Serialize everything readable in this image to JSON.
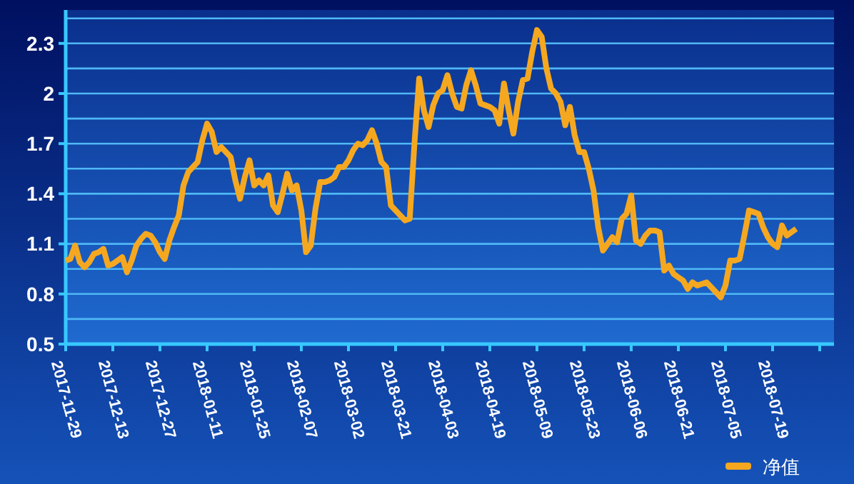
{
  "chart_data": {
    "type": "line",
    "categories": [
      "2017-11-29",
      null,
      null,
      null,
      null,
      null,
      null,
      null,
      null,
      null,
      "2017-12-13",
      null,
      null,
      null,
      null,
      null,
      null,
      null,
      null,
      null,
      "2017-12-27",
      null,
      null,
      null,
      null,
      null,
      null,
      null,
      null,
      null,
      "2018-01-11",
      null,
      null,
      null,
      null,
      null,
      null,
      null,
      null,
      null,
      "2018-01-25",
      null,
      null,
      null,
      null,
      null,
      null,
      null,
      null,
      null,
      "2018-02-07",
      null,
      null,
      null,
      null,
      null,
      null,
      null,
      null,
      null,
      "2018-03-02",
      null,
      null,
      null,
      null,
      null,
      null,
      null,
      null,
      null,
      "2018-03-21",
      null,
      null,
      null,
      null,
      null,
      null,
      null,
      null,
      null,
      "2018-04-03",
      null,
      null,
      null,
      null,
      null,
      null,
      null,
      null,
      null,
      "2018-04-19",
      null,
      null,
      null,
      null,
      null,
      null,
      null,
      null,
      null,
      "2018-05-09",
      null,
      null,
      null,
      null,
      null,
      null,
      null,
      null,
      null,
      "2018-05-23",
      null,
      null,
      null,
      null,
      null,
      null,
      null,
      null,
      null,
      "2018-06-06",
      null,
      null,
      null,
      null,
      null,
      null,
      null,
      null,
      null,
      "2018-06-21",
      null,
      null,
      null,
      null,
      null,
      null,
      null,
      null,
      null,
      "2018-07-05",
      null,
      null,
      null,
      null,
      null,
      null,
      null,
      null,
      null,
      "2018-07-19",
      null,
      null,
      null,
      null,
      null,
      null,
      null,
      null,
      null,
      null
    ],
    "series": [
      {
        "name": "净值",
        "color": "#f5a81f",
        "values": [
          1.0,
          1.01,
          1.09,
          0.99,
          0.96,
          0.99,
          1.04,
          1.05,
          1.07,
          0.97,
          0.98,
          1.0,
          1.02,
          0.93,
          1.0,
          1.09,
          1.13,
          1.16,
          1.15,
          1.11,
          1.05,
          1.01,
          1.12,
          1.2,
          1.27,
          1.45,
          1.53,
          1.56,
          1.59,
          1.72,
          1.82,
          1.77,
          1.65,
          1.68,
          1.65,
          1.62,
          1.48,
          1.37,
          1.5,
          1.6,
          1.45,
          1.48,
          1.45,
          1.51,
          1.33,
          1.29,
          1.4,
          1.52,
          1.42,
          1.45,
          1.3,
          1.05,
          1.09,
          1.31,
          1.47,
          1.47,
          1.48,
          1.5,
          1.56,
          1.56,
          1.6,
          1.66,
          1.7,
          1.69,
          1.72,
          1.78,
          1.7,
          1.59,
          1.56,
          1.33,
          1.3,
          1.27,
          1.24,
          1.25,
          1.7,
          2.09,
          1.9,
          1.8,
          1.93,
          2.0,
          2.02,
          2.11,
          2.0,
          1.92,
          1.91,
          2.05,
          2.14,
          2.05,
          1.94,
          1.93,
          1.92,
          1.9,
          1.82,
          2.06,
          1.9,
          1.76,
          1.95,
          2.08,
          2.09,
          2.25,
          2.38,
          2.34,
          2.15,
          2.03,
          2.0,
          1.95,
          1.81,
          1.92,
          1.75,
          1.65,
          1.65,
          1.55,
          1.42,
          1.2,
          1.06,
          1.1,
          1.14,
          1.11,
          1.25,
          1.28,
          1.39,
          1.12,
          1.1,
          1.15,
          1.18,
          1.18,
          1.17,
          0.94,
          0.97,
          0.92,
          0.9,
          0.88,
          0.83,
          0.87,
          0.85,
          0.86,
          0.87,
          0.84,
          0.81,
          0.78,
          0.85,
          1.0,
          1.0,
          1.01,
          1.15,
          1.3,
          1.29,
          1.28,
          1.2,
          1.14,
          1.1,
          1.08,
          1.21,
          1.15,
          1.17,
          1.19,
          null,
          null,
          null,
          null,
          null
        ]
      }
    ],
    "ylim": [
      0.5,
      2.5
    ],
    "yticks": [
      0.5,
      {
        "value": 0.65,
        "label": null
      },
      0.8,
      {
        "value": 0.95,
        "label": null
      },
      1.1,
      {
        "value": 1.25,
        "label": null
      },
      1.4,
      {
        "value": 1.55,
        "label": null
      },
      1.7,
      {
        "value": 1.85,
        "label": null
      },
      2,
      {
        "value": 2.15,
        "label": null
      },
      2.3,
      {
        "value": 2.45,
        "label": null
      }
    ],
    "grid": "y",
    "legend": "bottom right",
    "line_style": "solid",
    "marker": "none"
  }
}
